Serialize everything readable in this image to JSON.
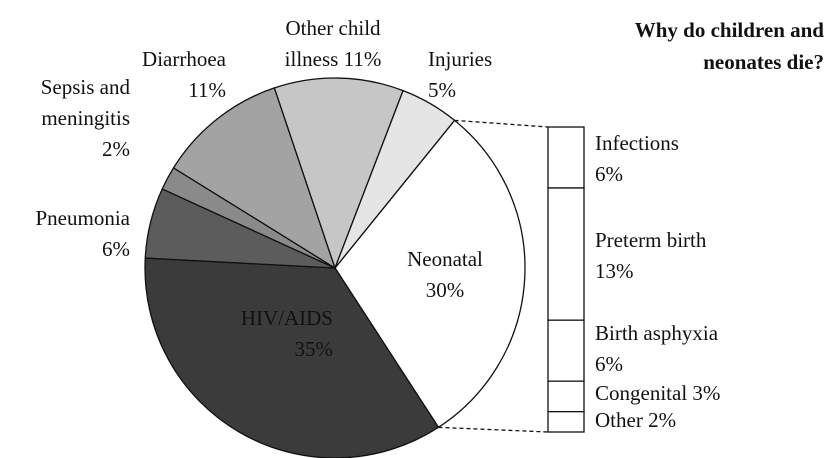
{
  "chart_data": {
    "type": "pie",
    "title": "Why do children and neonates die?",
    "categories": [
      "Neonatal",
      "HIV/AIDS",
      "Pneumonia",
      "Sepsis and meningitis",
      "Diarrhoea",
      "Other child illness",
      "Injuries"
    ],
    "values": [
      30,
      35,
      6,
      2,
      11,
      11,
      5
    ],
    "value_labels": [
      "30%",
      "35%",
      "6%",
      "2%",
      "11%",
      "11%",
      "5%"
    ],
    "colors": [
      "#ffffff",
      "#3b3b3b",
      "#5c5c5c",
      "#8a8a8a",
      "#a3a3a3",
      "#c6c6c6",
      "#e5e5e5"
    ],
    "bar": {
      "categories": [
        "Infections",
        "Preterm birth",
        "Birth asphyxia",
        "Congenital",
        "Other"
      ],
      "values": [
        6,
        13,
        6,
        3,
        2
      ],
      "value_labels": [
        "6%",
        "13%",
        "6%",
        "3%",
        "2%"
      ],
      "color": "#ffffff"
    }
  }
}
